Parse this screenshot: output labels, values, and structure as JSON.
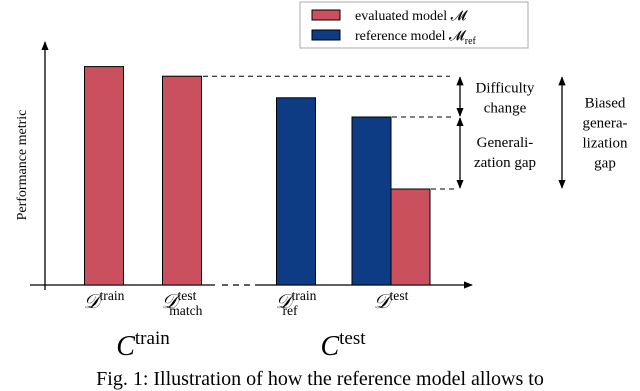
{
  "chart_data": {
    "type": "bar",
    "y_label": "Performance metric",
    "categories": [
      {
        "base": "𝒟",
        "sup": "train"
      },
      {
        "base": "𝒟",
        "sup": "test",
        "sub": "match"
      },
      {
        "base": "𝒟",
        "sup": "train",
        "sub": "ref"
      },
      {
        "base": "𝒟",
        "sup": "test"
      }
    ],
    "groups": [
      {
        "base": "C",
        "sup": "train"
      },
      {
        "base": "C",
        "sup": "test"
      }
    ],
    "series": [
      {
        "name": "evaluated model 𝓜",
        "color": "#c9505c",
        "values": [
          91,
          87,
          null,
          40
        ]
      },
      {
        "name": "reference model 𝓜",
        "name_sub": "ref",
        "color": "#0d3c85",
        "values": [
          null,
          null,
          78,
          70
        ]
      }
    ],
    "ylim": [
      0,
      100
    ],
    "annotations": [
      [
        "Difficulty",
        "change"
      ],
      [
        "Generali-",
        "zation gap"
      ],
      [
        "Biased",
        "genera-",
        "lization",
        "gap"
      ]
    ],
    "caption": "Fig. 1: Illustration of how the reference model allows to"
  }
}
